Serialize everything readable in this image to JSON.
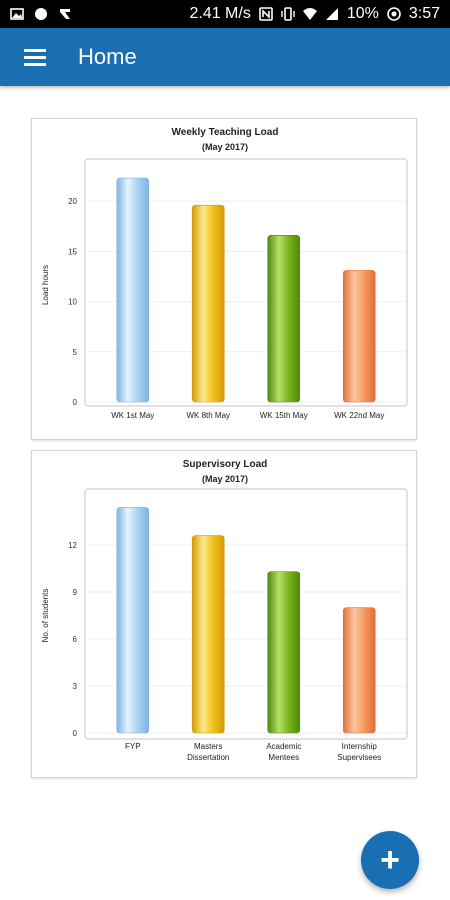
{
  "status_bar": {
    "speed": "2.41 M/s",
    "battery": "10%",
    "time": "3:57",
    "icons": [
      "image-icon",
      "circle-icon",
      "app-icon",
      "nfc-icon",
      "vibrate-icon",
      "wifi-icon",
      "signal-icon",
      "battery-icon",
      "timer-icon"
    ]
  },
  "app_bar": {
    "title": "Home",
    "menu_icon": "hamburger-menu-icon"
  },
  "fab": {
    "label": "+",
    "icon": "add-icon"
  },
  "colors": {
    "primary": "#1a6fb3",
    "bar_blue": "#a9d2f5",
    "bar_yellow": "#f2c21b",
    "bar_green": "#7ab51d",
    "bar_orange": "#f79a5e"
  },
  "chart_data": [
    {
      "type": "bar",
      "title": "Weekly Teaching Load",
      "subtitle": "(May 2017)",
      "xlabel": "",
      "ylabel": "Load hours",
      "categories": [
        "WK 1st May",
        "WK 8th May",
        "WK 15th May",
        "WK 22nd May"
      ],
      "values": [
        22.3,
        19.6,
        16.6,
        13.1
      ],
      "yticks": [
        "0",
        "5",
        "10",
        "15",
        "20"
      ],
      "ylim": [
        0,
        23.3
      ],
      "grid": true,
      "legend": "none"
    },
    {
      "type": "bar",
      "title": "Supervisory Load",
      "subtitle": "(May 2017)",
      "xlabel": "",
      "ylabel": "No. of students",
      "categories": [
        [
          "FYP"
        ],
        [
          "Masters",
          "Dissertation"
        ],
        [
          "Academic",
          "Mentees"
        ],
        [
          "Internship",
          "Supervisees"
        ]
      ],
      "values": [
        14.4,
        12.6,
        10.3,
        8.0
      ],
      "yticks": [
        "0",
        "3",
        "6",
        "9",
        "12"
      ],
      "ylim": [
        0,
        15.0
      ],
      "grid": true,
      "legend": "none"
    }
  ]
}
